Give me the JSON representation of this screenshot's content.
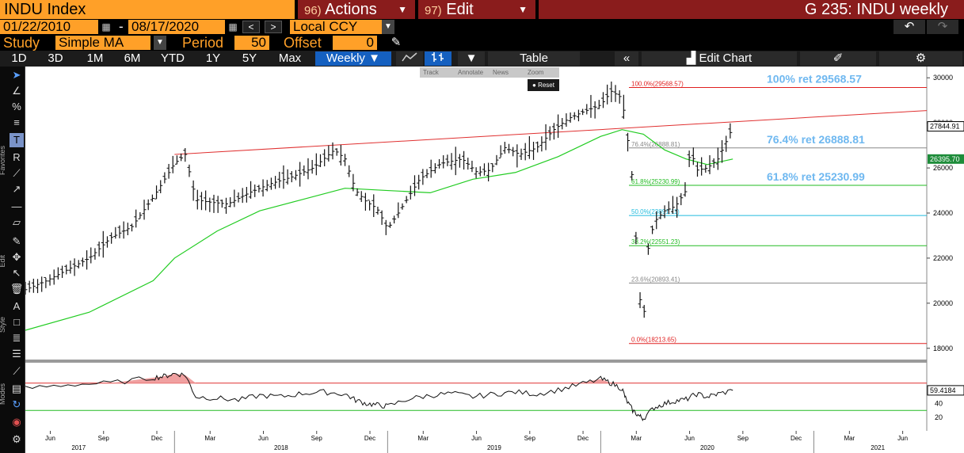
{
  "header": {
    "ticker": "INDU Index",
    "actions_num": "96)",
    "actions_label": "Actions",
    "edit_num": "97)",
    "edit_label": "Edit",
    "chart_title": "G 235: INDU weekly"
  },
  "range": {
    "start_date": "01/22/2010",
    "separator": "-",
    "end_date": "08/17/2020",
    "currency": "Local CCY"
  },
  "study": {
    "study_label": "Study",
    "study_value": "Simple MA",
    "period_label": "Period",
    "period_value": "50",
    "offset_label": "Offset",
    "offset_value": "0"
  },
  "timeframes": [
    "1D",
    "3D",
    "1M",
    "6M",
    "YTD",
    "1Y",
    "5Y",
    "Max"
  ],
  "periodicity": "Weekly",
  "toolbar": {
    "table_label": "Table",
    "edit_chart_label": "Edit Chart"
  },
  "overlay_menu": {
    "items": [
      "Track",
      "Annotate",
      "News",
      "Zoom"
    ],
    "reset_label": "Reset"
  },
  "side_labels": {
    "favorites": "Favorites",
    "edit": "Edit",
    "style": "Style",
    "modes": "Modes"
  },
  "colors": {
    "accent": "#ffa028",
    "menu_red": "#8a1c1c",
    "active_blue": "#1560c0",
    "ma_green": "#22cc22",
    "fib_label_blue": "#6fb8f0"
  },
  "chart_data": {
    "type": "line",
    "series": [
      {
        "kind": "price",
        "t": [
          2017.3,
          2017.4,
          2017.5,
          2017.6,
          2017.7,
          2017.8,
          2017.9,
          2018.0,
          2018.05,
          2018.1,
          2018.15,
          2018.25,
          2018.35,
          2018.45,
          2018.55,
          2018.65,
          2018.75,
          2018.8,
          2018.85,
          2018.9,
          2018.95,
          2019.0,
          2019.05,
          2019.15,
          2019.25,
          2019.35,
          2019.42,
          2019.48,
          2019.55,
          2019.62,
          2019.7,
          2019.78,
          2019.85,
          2019.92,
          2020.0,
          2020.05,
          2020.1,
          2020.13,
          2020.15,
          2020.18,
          2020.2,
          2020.22,
          2020.25,
          2020.3,
          2020.35,
          2020.4,
          2020.42,
          2020.45,
          2020.5,
          2020.55,
          2020.6,
          2020.62
        ],
        "v": [
          20600,
          21000,
          21500,
          22000,
          22900,
          23400,
          24700,
          26200,
          26600,
          24600,
          24500,
          24400,
          24900,
          25300,
          25600,
          26000,
          26800,
          26400,
          25000,
          24500,
          24200,
          23300,
          24000,
          25500,
          26200,
          26400,
          25800,
          25900,
          26900,
          26600,
          26900,
          27700,
          28200,
          28500,
          28800,
          29400,
          29100,
          27000,
          25400,
          20500,
          19000,
          22300,
          23600,
          24100,
          24300,
          25000,
          26900,
          25900,
          26000,
          26400,
          27400,
          27844.91
        ]
      },
      {
        "name": "",
        "kind": "sma50",
        "t": [
          2017.3,
          2017.6,
          2017.9,
          2018.0,
          2018.2,
          2018.4,
          2018.6,
          2018.8,
          2019.0,
          2019.2,
          2019.4,
          2019.6,
          2019.8,
          2020.0,
          2020.1,
          2020.2,
          2020.3,
          2020.4,
          2020.5,
          2020.62
        ],
        "v": [
          18800,
          19600,
          21000,
          22000,
          23200,
          24100,
          24600,
          25100,
          25000,
          24900,
          25500,
          25800,
          26500,
          27400,
          27700,
          27500,
          26800,
          26400,
          26150,
          26395.7
        ]
      }
    ],
    "trendline": {
      "t": [
        2018.0,
        2020.9
      ],
      "v": [
        26600,
        28200
      ]
    },
    "fib_levels": [
      {
        "pct": "100.0%",
        "value": 29568.57
      },
      {
        "pct": "76.4%",
        "value": 26888.81
      },
      {
        "pct": "61.8%",
        "value": 25230.99
      },
      {
        "pct": "50.0%",
        "value": 23891.11
      },
      {
        "pct": "38.2%",
        "value": 22551.23
      },
      {
        "pct": "23.6%",
        "value": 20893.41
      },
      {
        "pct": "0.0%",
        "value": 18213.65
      }
    ],
    "fib_callouts": [
      {
        "text": "100% ret 29568.57",
        "value": 29568.57
      },
      {
        "text": "76.4% ret 26888.81",
        "value": 26888.81
      },
      {
        "text": "61.8% ret 25230.99",
        "value": 25230.99
      }
    ],
    "last_price": "27844.91",
    "last_ma": "26395.70",
    "y_ticks": [
      18000,
      20000,
      22000,
      24000,
      26000,
      28000,
      30000
    ],
    "ylim": [
      17500,
      30500
    ],
    "rsi": {
      "t": [
        2017.3,
        2017.5,
        2017.7,
        2017.9,
        2017.95,
        2018.0,
        2018.05,
        2018.1,
        2018.2,
        2018.3,
        2018.4,
        2018.5,
        2018.6,
        2018.7,
        2018.8,
        2018.85,
        2018.9,
        2018.95,
        2019.0,
        2019.1,
        2019.2,
        2019.3,
        2019.4,
        2019.5,
        2019.6,
        2019.7,
        2019.8,
        2019.9,
        2020.0,
        2020.05,
        2020.1,
        2020.12,
        2020.15,
        2020.18,
        2020.2,
        2020.25,
        2020.3,
        2020.35,
        2020.4,
        2020.45,
        2020.5,
        2020.55,
        2020.62
      ],
      "v": [
        62,
        68,
        70,
        78,
        80,
        84,
        82,
        50,
        48,
        45,
        52,
        50,
        55,
        57,
        54,
        45,
        40,
        38,
        36,
        47,
        52,
        55,
        50,
        54,
        57,
        54,
        60,
        68,
        76,
        70,
        62,
        45,
        30,
        22,
        18,
        34,
        40,
        44,
        46,
        54,
        50,
        54,
        59.4184
      ],
      "last": "59.4184",
      "ticks": [
        20,
        40
      ],
      "upper": 70,
      "lower": 30
    },
    "x_months": [
      {
        "t": 2017.417,
        "label": "Jun"
      },
      {
        "t": 2017.667,
        "label": "Sep"
      },
      {
        "t": 2017.917,
        "label": "Dec"
      },
      {
        "t": 2018.167,
        "label": "Mar"
      },
      {
        "t": 2018.417,
        "label": "Jun"
      },
      {
        "t": 2018.667,
        "label": "Sep"
      },
      {
        "t": 2018.917,
        "label": "Dec"
      },
      {
        "t": 2019.167,
        "label": "Mar"
      },
      {
        "t": 2019.417,
        "label": "Jun"
      },
      {
        "t": 2019.667,
        "label": "Sep"
      },
      {
        "t": 2019.917,
        "label": "Dec"
      },
      {
        "t": 2020.167,
        "label": "Mar"
      },
      {
        "t": 2020.417,
        "label": "Jun"
      },
      {
        "t": 2020.667,
        "label": "Sep"
      },
      {
        "t": 2020.917,
        "label": "Dec"
      },
      {
        "t": 2021.167,
        "label": "Mar"
      },
      {
        "t": 2021.417,
        "label": "Jun"
      }
    ],
    "x_years": [
      {
        "t": 2017.55,
        "label": "2017"
      },
      {
        "t": 2018.5,
        "label": "2018"
      },
      {
        "t": 2019.5,
        "label": "2019"
      },
      {
        "t": 2020.5,
        "label": "2020"
      },
      {
        "t": 2021.3,
        "label": "2021"
      }
    ],
    "xlim": [
      2017.3,
      2021.53
    ]
  }
}
